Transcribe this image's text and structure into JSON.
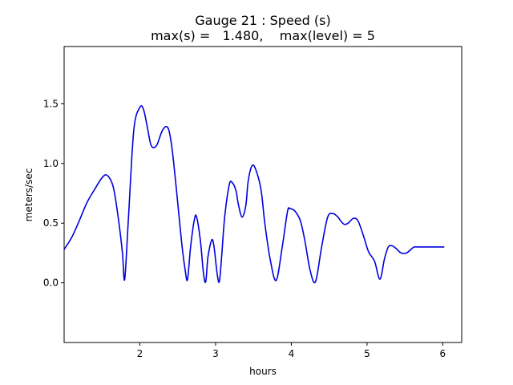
{
  "chart_data": {
    "type": "line",
    "title_line1": "Gauge 21 : Speed (s)",
    "title_line2": "max(s) =   1.480,    max(level) = 5",
    "xlabel": "hours",
    "ylabel": "meters/sec",
    "xlim": [
      1.0,
      6.25
    ],
    "ylim": [
      -0.5,
      1.98
    ],
    "x_ticks": [
      2,
      3,
      4,
      5,
      6
    ],
    "y_ticks": [
      0.0,
      0.5,
      1.0,
      1.5
    ],
    "x_tick_labels": [
      "2",
      "3",
      "4",
      "5",
      "6"
    ],
    "y_tick_labels": [
      "0.0",
      "0.5",
      "1.0",
      "1.5"
    ],
    "grid": false,
    "series": [
      {
        "color": "#0000dd",
        "x": [
          1.0,
          1.1,
          1.2,
          1.3,
          1.4,
          1.5,
          1.57,
          1.65,
          1.72,
          1.77,
          1.8,
          1.85,
          1.92,
          2.0,
          2.05,
          2.1,
          2.15,
          2.22,
          2.3,
          2.37,
          2.42,
          2.48,
          2.55,
          2.6,
          2.63,
          2.67,
          2.72,
          2.75,
          2.8,
          2.84,
          2.87,
          2.9,
          2.95,
          2.98,
          3.02,
          3.05,
          3.08,
          3.12,
          3.18,
          3.22,
          3.27,
          3.3,
          3.35,
          3.4,
          3.43,
          3.48,
          3.53,
          3.6,
          3.65,
          3.72,
          3.8,
          3.88,
          3.95,
          3.98,
          4.0,
          4.05,
          4.12,
          4.18,
          4.25,
          4.32,
          4.4,
          4.48,
          4.55,
          4.6,
          4.63,
          4.65,
          4.7,
          4.75,
          4.82,
          4.88,
          4.95,
          5.02,
          5.1,
          5.17,
          5.23,
          5.28,
          5.33,
          5.38,
          5.45,
          5.52,
          5.58,
          5.62,
          5.68,
          5.75,
          5.82,
          5.88,
          5.95,
          6.02
        ],
        "y": [
          0.28,
          0.38,
          0.52,
          0.67,
          0.78,
          0.88,
          0.9,
          0.8,
          0.52,
          0.25,
          0.03,
          0.55,
          1.28,
          1.47,
          1.45,
          1.3,
          1.15,
          1.15,
          1.28,
          1.3,
          1.15,
          0.8,
          0.35,
          0.1,
          0.03,
          0.3,
          0.53,
          0.55,
          0.35,
          0.08,
          0.01,
          0.22,
          0.36,
          0.3,
          0.08,
          0.01,
          0.22,
          0.55,
          0.82,
          0.84,
          0.77,
          0.66,
          0.55,
          0.65,
          0.85,
          0.98,
          0.95,
          0.78,
          0.5,
          0.2,
          0.02,
          0.3,
          0.6,
          0.62,
          0.62,
          0.6,
          0.52,
          0.35,
          0.1,
          0.01,
          0.3,
          0.55,
          0.58,
          0.56,
          0.54,
          0.52,
          0.49,
          0.5,
          0.54,
          0.52,
          0.4,
          0.26,
          0.18,
          0.03,
          0.2,
          0.3,
          0.31,
          0.29,
          0.25,
          0.25,
          0.28,
          0.3,
          0.3,
          0.3,
          0.3,
          0.3,
          0.3,
          0.3
        ]
      }
    ]
  }
}
